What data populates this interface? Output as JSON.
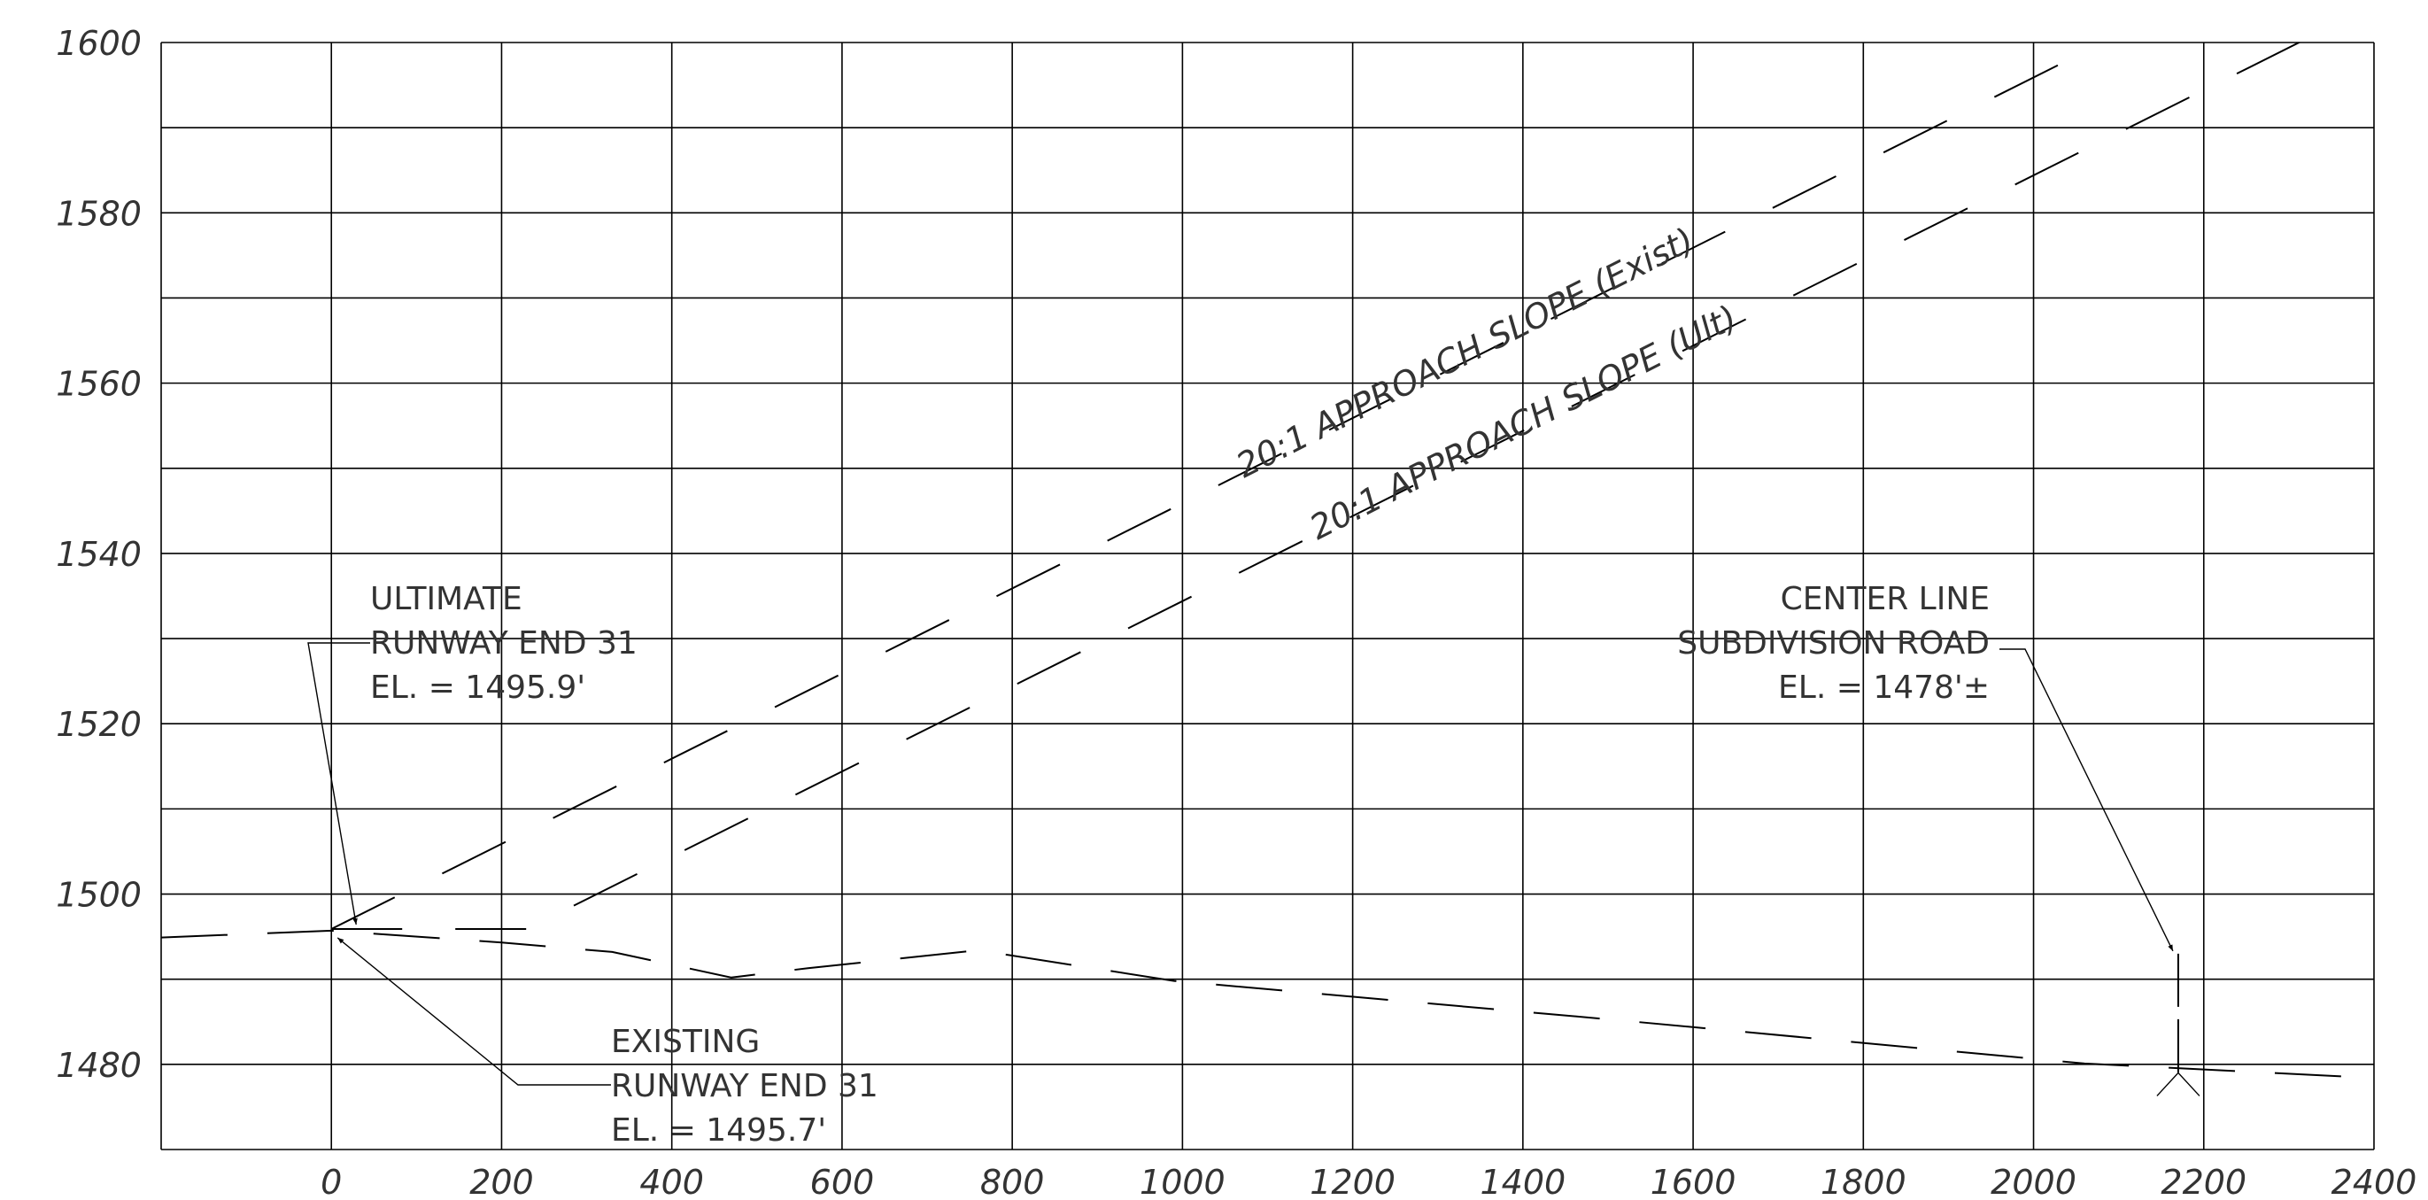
{
  "chart_data": {
    "type": "line",
    "title": "",
    "xlabel": "",
    "ylabel": "",
    "xlim": [
      -200,
      2400
    ],
    "ylim": [
      1470,
      1600
    ],
    "grid": true,
    "x_ticks": [
      0,
      200,
      400,
      600,
      800,
      1000,
      1200,
      1400,
      1600,
      1800,
      2000,
      2200,
      2400
    ],
    "y_ticks": [
      1480,
      1500,
      1520,
      1540,
      1560,
      1580,
      1600
    ],
    "x_tick_labels": [
      "0",
      "200",
      "400",
      "600",
      "800",
      "1000",
      "1200",
      "1400",
      "1600",
      "1800",
      "2000",
      "2200",
      "2400"
    ],
    "y_tick_labels": [
      "1480",
      "1500",
      "1520",
      "1540",
      "1560",
      "1580",
      "1600"
    ],
    "series": [
      {
        "points": [
          [
            0,
            1495.9
          ],
          [
            2470,
            1619.4
          ]
        ],
        "style": "long-dash"
      },
      {
        "points": [
          [
            0,
            1495.9
          ],
          [
            230,
            1495.9
          ],
          [
            2470,
            1607.9
          ]
        ],
        "style": "long-dash"
      },
      {
        "points": [
          [
            -200,
            1494.9
          ],
          [
            0,
            1495.7
          ],
          [
            200,
            1494.3
          ],
          [
            330,
            1493.2
          ],
          [
            470,
            1490.2
          ],
          [
            560,
            1491.3
          ],
          [
            760,
            1493.4
          ],
          [
            990,
            1489.8
          ],
          [
            1500,
            1485.3
          ],
          [
            2060,
            1480.1
          ],
          [
            2400,
            1478.4
          ]
        ],
        "style": "long-dash"
      }
    ],
    "annotations": {
      "slope_exist": "20:1 APPROACH SLOPE (Exist)",
      "slope_ult": "20:1 APPROACH SLOPE (Ult)",
      "ultimate": [
        "ULTIMATE",
        "RUNWAY END 31",
        "EL. = 1495.9'"
      ],
      "existing": [
        "EXISTING",
        "RUNWAY END 31",
        "EL. = 1495.7'"
      ],
      "centerline": [
        "CENTER LINE",
        "SUBDIVISION ROAD",
        "EL. = 1478'±"
      ]
    },
    "road_marker": {
      "x": 2170,
      "y_top": 1493,
      "y_bottom": 1479
    }
  }
}
